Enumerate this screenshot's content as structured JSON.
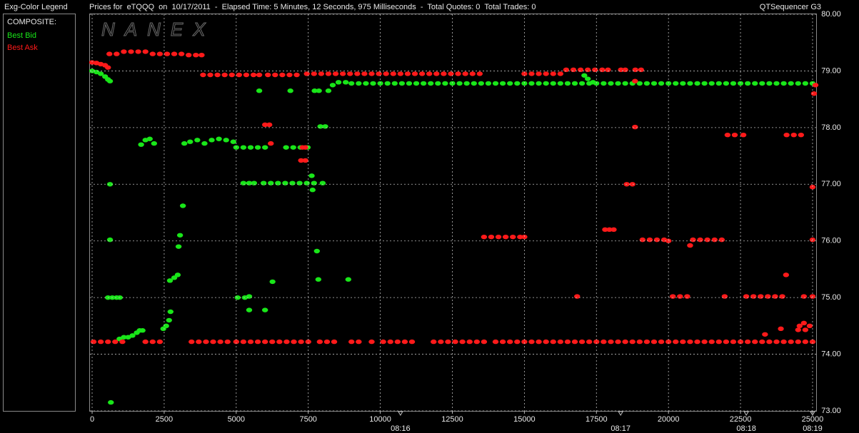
{
  "legend_title": "Exg-Color Legend",
  "legend_heading": "COMPOSITE:",
  "app_name": "QTSequencer G3",
  "watermark": "NANEX",
  "chart_data": {
    "type": "scatter",
    "title": "Prices for  eTQQQ  on  10/17/2011  -  Elapsed Time: 5 Minutes, 12 Seconds, 975 Milliseconds  -  Total Quotes: 0  Total Trades: 0",
    "xlim": [
      -75,
      25125
    ],
    "ylim": [
      73,
      80
    ],
    "xticks": [
      0,
      2500,
      5000,
      7500,
      10000,
      12500,
      15000,
      17500,
      20000,
      22500,
      25000
    ],
    "yticks": [
      {
        "value": 80,
        "label": "80.00"
      },
      {
        "value": 79,
        "label": "79.00"
      },
      {
        "value": 78,
        "label": "78.00"
      },
      {
        "value": 77,
        "label": "77.00"
      },
      {
        "value": 76,
        "label": "76.00"
      },
      {
        "value": 75,
        "label": "75.00"
      },
      {
        "value": 74,
        "label": "74.00"
      },
      {
        "value": 73,
        "label": "73.00"
      }
    ],
    "time_ticks": [
      {
        "value": 10700,
        "label": "08:16"
      },
      {
        "value": 18340,
        "label": "08:17"
      },
      {
        "value": 22700,
        "label": "08:18"
      },
      {
        "value": 25000,
        "label": "08:19"
      }
    ],
    "grid": true,
    "series": [
      {
        "name": "Best Bid",
        "color": "#19e619",
        "x": [
          0,
          150,
          300,
          450,
          550,
          620,
          550,
          700,
          850,
          960,
          620,
          620,
          650,
          950,
          1100,
          1250,
          1400,
          1550,
          1650,
          1750,
          1700,
          1850,
          2000,
          2150,
          2470,
          2570,
          2670,
          2720,
          2700,
          2850,
          2970,
          3000,
          3050,
          3150,
          3200,
          3400,
          3650,
          3900,
          4150,
          4400,
          4650,
          4900,
          5000,
          5250,
          5500,
          5750,
          6000,
          5050,
          5300,
          5450,
          5450,
          6000,
          5800,
          5250,
          5450,
          5620,
          5950,
          6200,
          6450,
          6700,
          6950,
          7200,
          7450,
          7700,
          8000,
          6730,
          6980,
          7230,
          7480,
          6260,
          6880,
          7720,
          7870,
          7920,
          8090,
          7620,
          7650,
          7800,
          7850,
          8890,
          8200,
          8350,
          8550,
          8800,
          9000,
          9250,
          9500,
          9750,
          10000,
          10250,
          10500,
          10750,
          11000,
          11250,
          11500,
          11750,
          12000,
          12250,
          12500,
          12750,
          13000,
          13250,
          13500,
          13750,
          14000,
          14250,
          14500,
          14750,
          15000,
          15250,
          15500,
          15750,
          16000,
          16250,
          16500,
          16750,
          17000,
          17250,
          17500,
          17750,
          18000,
          18250,
          18500,
          18750,
          19000,
          19250,
          19500,
          19750,
          20000,
          20250,
          20500,
          20750,
          21000,
          21250,
          21500,
          21750,
          22000,
          22250,
          22500,
          22750,
          23000,
          23250,
          23500,
          23750,
          24000,
          24250,
          24500,
          24750,
          25000,
          17080,
          17200,
          17380
        ],
        "values": [
          79.0,
          78.98,
          78.95,
          78.9,
          78.85,
          78.82,
          75,
          75,
          75,
          75,
          77.0,
          76.02,
          73.15,
          74.27,
          74.3,
          74.3,
          74.33,
          74.38,
          74.42,
          74.42,
          77.7,
          77.78,
          77.8,
          77.72,
          74.45,
          74.5,
          74.6,
          74.75,
          75.3,
          75.35,
          75.4,
          75.9,
          76.1,
          76.62,
          77.72,
          77.75,
          77.78,
          77.72,
          77.78,
          77.8,
          77.78,
          77.75,
          77.65,
          77.65,
          77.65,
          77.65,
          77.65,
          75.0,
          75.0,
          75.02,
          74.78,
          74.78,
          78.65,
          77.02,
          77.02,
          77.02,
          77.02,
          77.02,
          77.02,
          77.02,
          77.02,
          77.02,
          77.02,
          77.02,
          77.02,
          77.65,
          77.65,
          77.65,
          77.65,
          75.28,
          78.65,
          78.65,
          78.65,
          78.02,
          78.02,
          77.15,
          76.9,
          75.82,
          75.32,
          75.32,
          78.65,
          78.75,
          78.8,
          78.8,
          78.78,
          78.78,
          78.78,
          78.78,
          78.78,
          78.78,
          78.78,
          78.78,
          78.78,
          78.78,
          78.78,
          78.78,
          78.78,
          78.78,
          78.78,
          78.78,
          78.78,
          78.78,
          78.78,
          78.78,
          78.78,
          78.78,
          78.78,
          78.78,
          78.78,
          78.78,
          78.78,
          78.78,
          78.78,
          78.78,
          78.78,
          78.78,
          78.78,
          78.78,
          78.78,
          78.78,
          78.78,
          78.78,
          78.78,
          78.78,
          78.78,
          78.78,
          78.78,
          78.78,
          78.78,
          78.78,
          78.78,
          78.78,
          78.78,
          78.78,
          78.78,
          78.78,
          78.78,
          78.78,
          78.78,
          78.78,
          78.78,
          78.78,
          78.78,
          78.78,
          78.78,
          78.78,
          78.78,
          78.78,
          78.78,
          78.92,
          78.86,
          78.8
        ]
      },
      {
        "name": "Best Ask",
        "color": "#ff1a1a",
        "x": [
          0,
          150,
          300,
          450,
          550,
          600,
          850,
          1100,
          1350,
          1600,
          1850,
          2100,
          2350,
          2600,
          2850,
          3100,
          3350,
          3600,
          3800,
          3850,
          4100,
          4350,
          4600,
          4850,
          5100,
          5350,
          5600,
          5800,
          6100,
          6350,
          6600,
          6850,
          7100,
          7450,
          7700,
          7950,
          8200,
          8450,
          8700,
          8950,
          9200,
          9450,
          9700,
          9950,
          10200,
          10450,
          10700,
          10950,
          11200,
          11450,
          11700,
          11950,
          12200,
          12450,
          12700,
          12950,
          13200,
          13450,
          15000,
          15250,
          15500,
          15750,
          16000,
          16250,
          16450,
          16700,
          16950,
          17200,
          17450,
          17700,
          17900,
          18350,
          18500,
          18850,
          19050,
          50,
          300,
          550,
          800,
          1050,
          1850,
          2100,
          2350,
          3450,
          3700,
          3950,
          4200,
          4450,
          4700,
          5000,
          5250,
          5500,
          5750,
          6000,
          6250,
          6500,
          6750,
          7000,
          7250,
          7500,
          7900,
          8150,
          8400,
          9000,
          9250,
          9700,
          10100,
          10350,
          10600,
          10850,
          11100,
          11850,
          12100,
          12350,
          12600,
          12850,
          13100,
          13350,
          13600,
          14000,
          14250,
          14500,
          14750,
          15000,
          15250,
          15500,
          15750,
          16000,
          16250,
          16500,
          16750,
          17000,
          17250,
          17500,
          17750,
          18000,
          18250,
          18500,
          18750,
          19000,
          19250,
          19500,
          19750,
          20000,
          20250,
          20500,
          20750,
          21000,
          21250,
          21500,
          21750,
          22000,
          22250,
          22500,
          22750,
          23000,
          23250,
          23500,
          23750,
          24000,
          24250,
          24500,
          24750,
          25000,
          6000,
          6150,
          6200,
          7250,
          7400,
          7300,
          7400,
          13600,
          13850,
          14100,
          14350,
          14600,
          14850,
          15000,
          16830,
          17800,
          17950,
          18100,
          18550,
          18750,
          18840,
          18840,
          19100,
          19350,
          19600,
          19850,
          20000,
          20150,
          20400,
          20650,
          20750,
          20850,
          21100,
          21350,
          21600,
          21850,
          21950,
          22050,
          22300,
          22600,
          22700,
          22950,
          23200,
          23450,
          23700,
          23950,
          23350,
          23900,
          24080,
          24100,
          24350,
          24600,
          24500,
          24750,
          24550,
          24900,
          24700,
          24700,
          25000,
          25000,
          25000,
          25050,
          25100
        ],
        "values": [
          79.15,
          79.14,
          79.12,
          79.1,
          79.06,
          79.3,
          79.3,
          79.34,
          79.34,
          79.34,
          79.34,
          79.3,
          79.3,
          79.3,
          79.3,
          79.3,
          79.28,
          79.28,
          79.28,
          78.93,
          78.93,
          78.93,
          78.93,
          78.93,
          78.93,
          78.93,
          78.93,
          78.93,
          78.93,
          78.93,
          78.93,
          78.93,
          78.93,
          78.95,
          78.95,
          78.95,
          78.95,
          78.95,
          78.95,
          78.95,
          78.95,
          78.95,
          78.95,
          78.95,
          78.95,
          78.95,
          78.95,
          78.95,
          78.95,
          78.95,
          78.95,
          78.95,
          78.95,
          78.95,
          78.95,
          78.95,
          78.95,
          78.95,
          78.95,
          78.95,
          78.95,
          78.95,
          78.95,
          78.95,
          79.02,
          79.02,
          79.02,
          79.02,
          79.02,
          79.02,
          79.02,
          79.02,
          79.02,
          79.02,
          79.02,
          74.22,
          74.22,
          74.22,
          74.22,
          74.22,
          74.22,
          74.22,
          74.22,
          74.22,
          74.22,
          74.22,
          74.22,
          74.22,
          74.22,
          74.22,
          74.22,
          74.22,
          74.22,
          74.22,
          74.22,
          74.22,
          74.22,
          74.22,
          74.22,
          74.22,
          74.22,
          74.22,
          74.22,
          74.22,
          74.22,
          74.22,
          74.22,
          74.22,
          74.22,
          74.22,
          74.22,
          74.22,
          74.22,
          74.22,
          74.22,
          74.22,
          74.22,
          74.22,
          74.22,
          74.22,
          74.22,
          74.22,
          74.22,
          74.22,
          74.22,
          74.22,
          74.22,
          74.22,
          74.22,
          74.22,
          74.22,
          74.22,
          74.22,
          74.22,
          74.22,
          74.22,
          74.22,
          74.22,
          74.22,
          74.22,
          74.22,
          74.22,
          74.22,
          74.22,
          74.22,
          74.22,
          74.22,
          74.22,
          74.22,
          74.22,
          74.22,
          74.22,
          74.22,
          74.22,
          74.22,
          74.22,
          74.22,
          74.22,
          74.22,
          74.22,
          74.22,
          74.22,
          74.22,
          74.22,
          78.05,
          78.05,
          77.72,
          77.42,
          77.42,
          77.65,
          77.65,
          76.07,
          76.07,
          76.07,
          76.07,
          76.07,
          76.07,
          76.07,
          75.02,
          76.2,
          76.2,
          76.2,
          77.0,
          77.0,
          78.01,
          78.82,
          76.02,
          76.02,
          76.02,
          76.02,
          76.0,
          75.02,
          75.02,
          75.02,
          75.92,
          76.02,
          76.02,
          76.02,
          76.02,
          76.02,
          75.02,
          77.87,
          77.87,
          77.87,
          75.02,
          75.02,
          75.02,
          75.02,
          75.02,
          75.02,
          74.35,
          74.45,
          75.4,
          77.87,
          77.87,
          77.87,
          74.43,
          74.43,
          74.5,
          74.5,
          74.55,
          75.02,
          75.02,
          76.02,
          76.95,
          78.6,
          78.75
        ]
      }
    ]
  }
}
